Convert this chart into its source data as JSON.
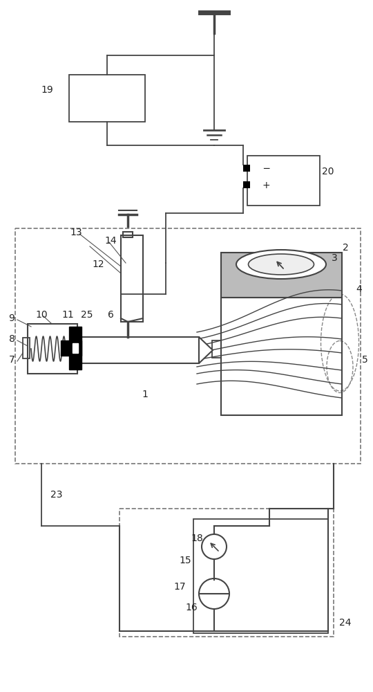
{
  "bg_color": "#ffffff",
  "lc": "#444444",
  "dc": "#888888",
  "gc": "#bbbbbb",
  "figsize": [
    5.4,
    10.0
  ],
  "dpi": 100
}
